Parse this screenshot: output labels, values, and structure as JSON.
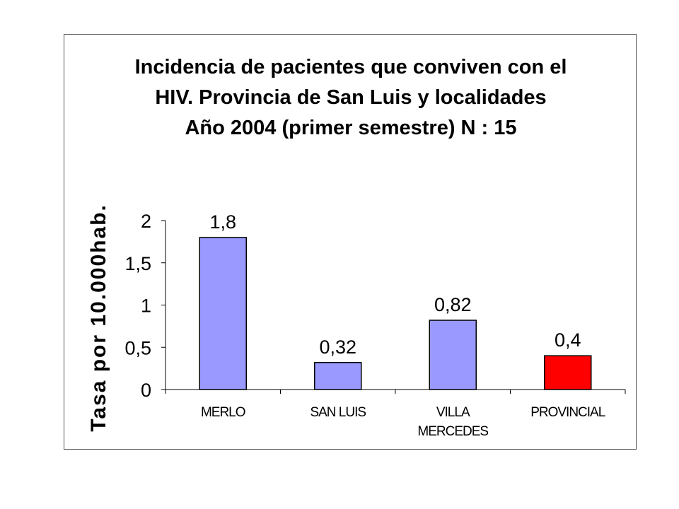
{
  "chart_data": {
    "type": "bar",
    "title_lines": [
      "Incidencia de pacientes que conviven con el",
      "HIV. Provincia de San Luis y localidades",
      "Año 2004 (primer semestre) N : 15"
    ],
    "ylabel": "Tasa por 10.000hab.",
    "xlabel": "",
    "categories": [
      [
        "MERLO"
      ],
      [
        "SAN LUIS"
      ],
      [
        "VILLA",
        "MERCEDES"
      ],
      [
        "PROVINCIAL"
      ]
    ],
    "values": [
      1.8,
      0.32,
      0.82,
      0.4
    ],
    "value_labels": [
      "1,8",
      "0,32",
      "0,82",
      "0,4"
    ],
    "bar_colors": [
      "#9999ff",
      "#9999ff",
      "#9999ff",
      "#ff0000"
    ],
    "ylim": [
      0,
      2
    ],
    "yticks": [
      0,
      0.5,
      1,
      1.5,
      2
    ],
    "ytick_labels": [
      "0",
      "0,5",
      "1",
      "1,5",
      "2"
    ],
    "grid": false,
    "legend": "none"
  }
}
